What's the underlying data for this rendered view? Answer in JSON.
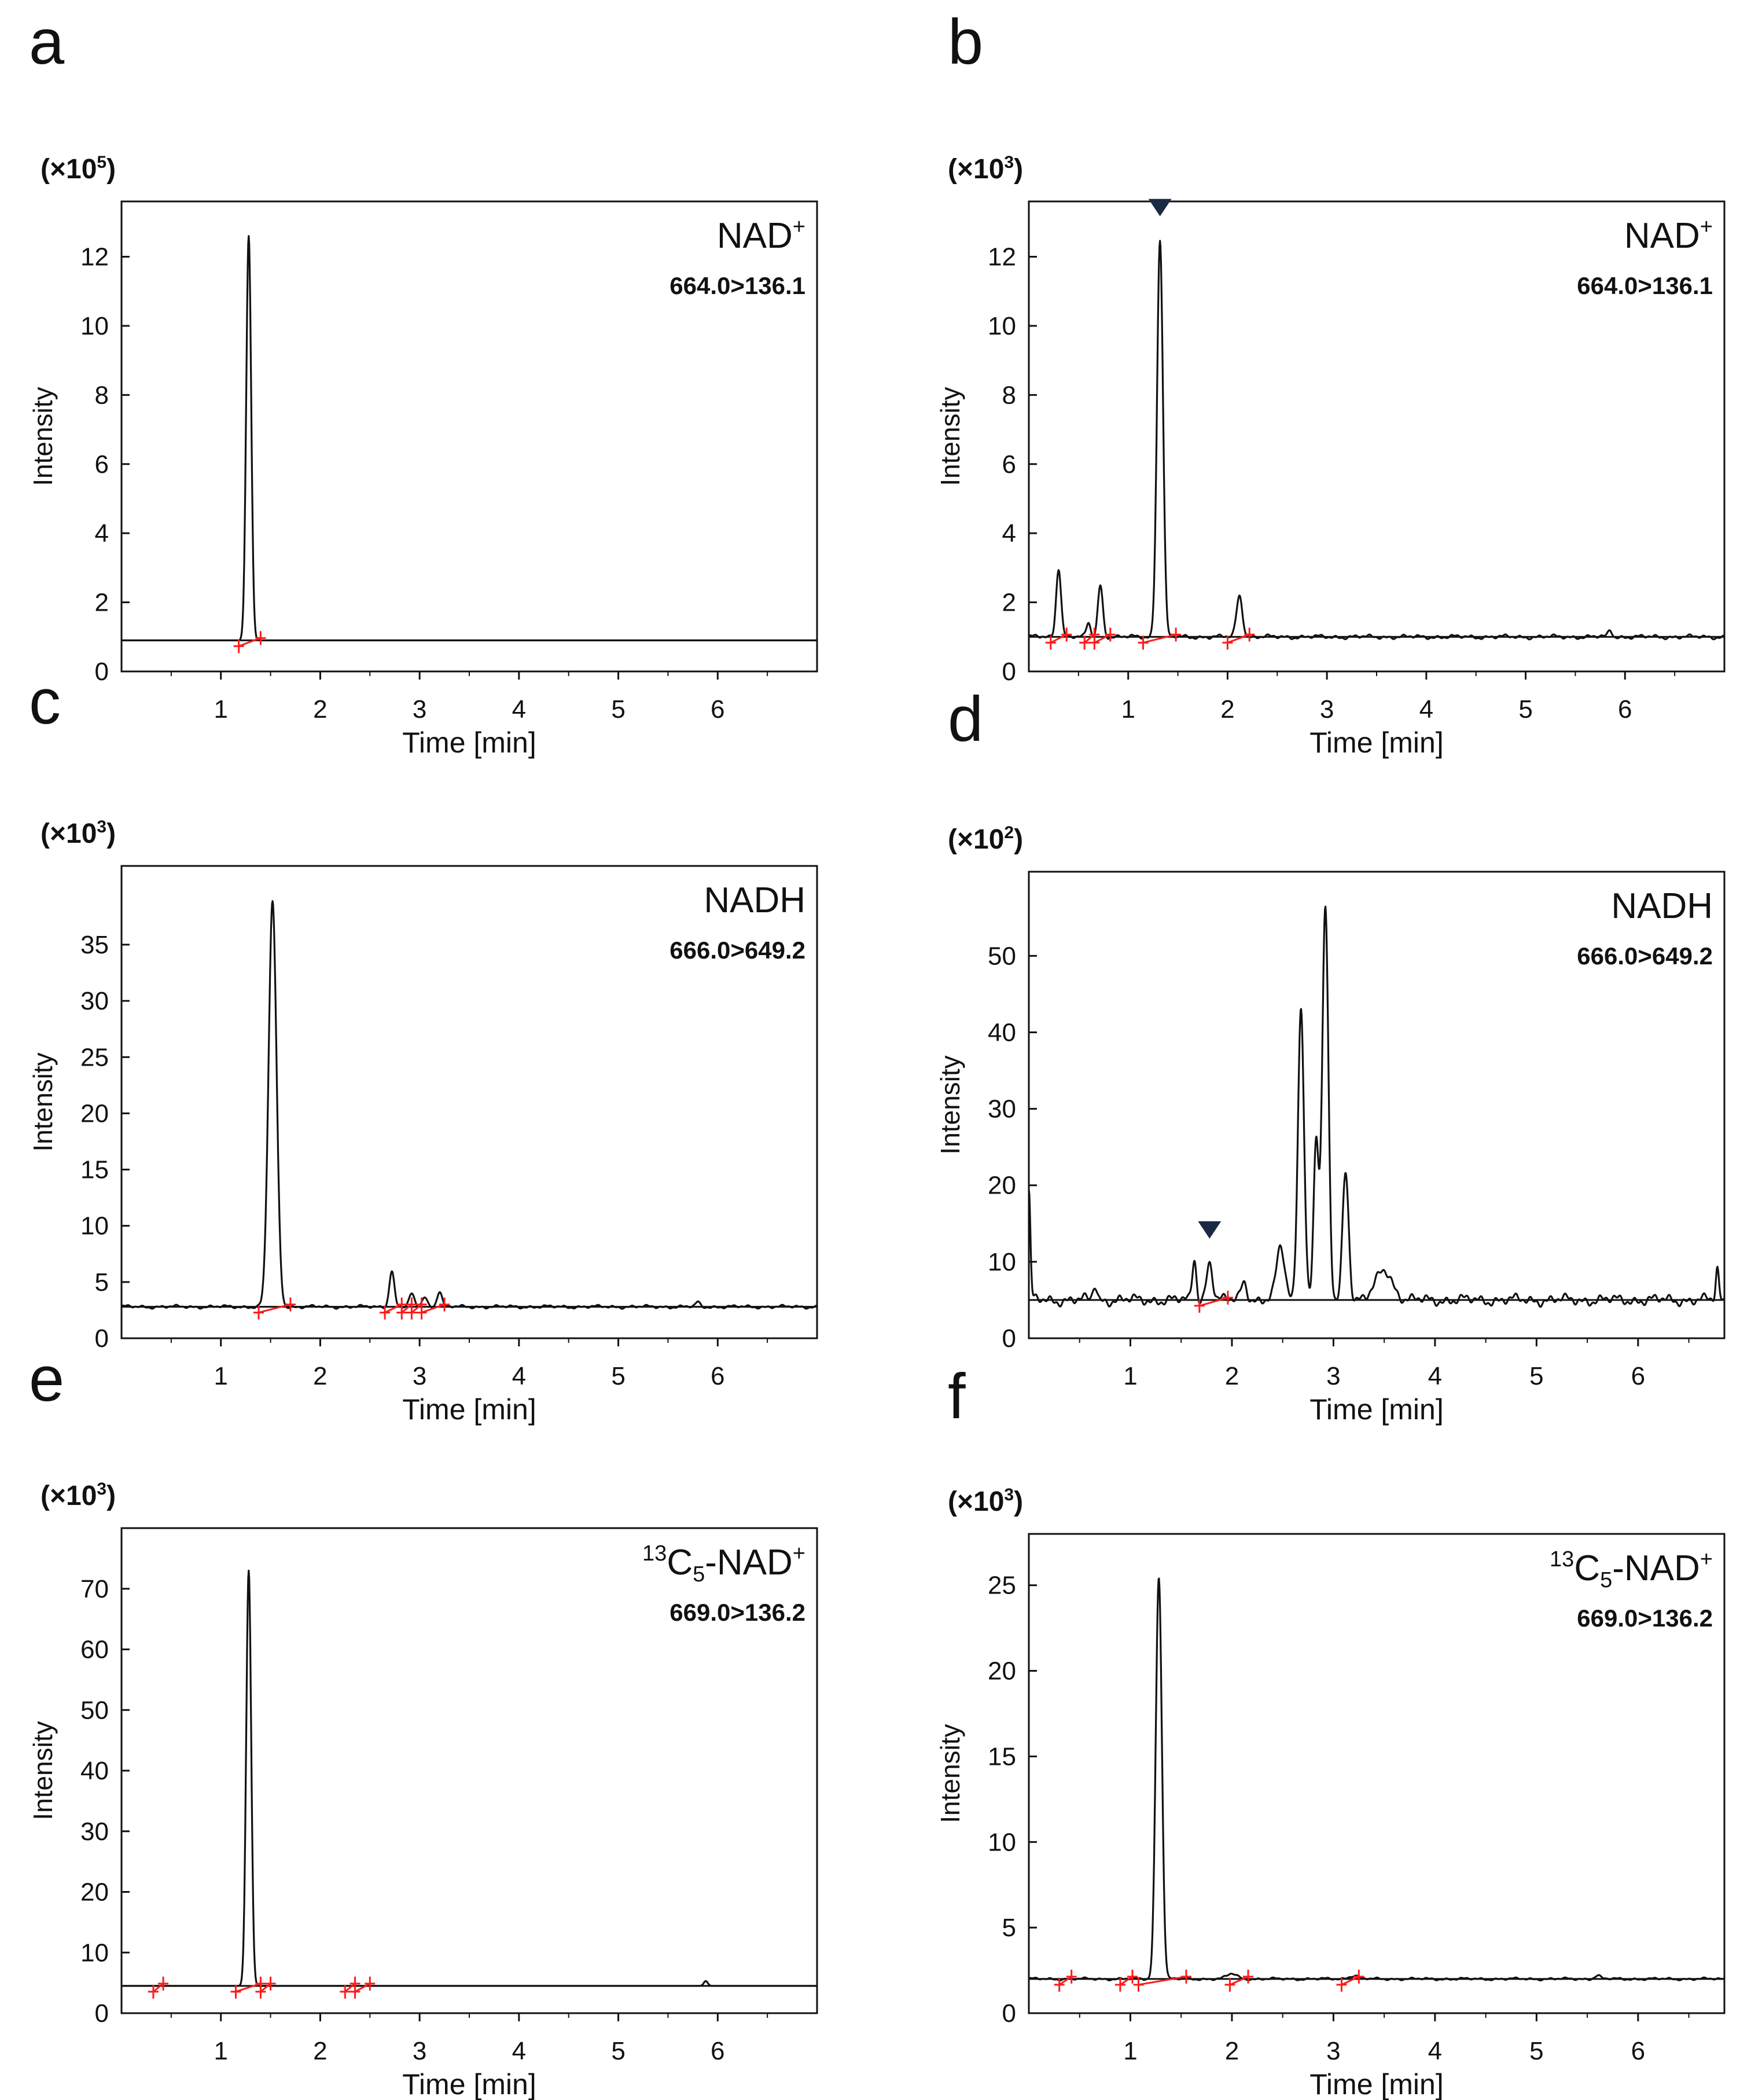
{
  "figure": {
    "panels": [
      "a",
      "b",
      "c",
      "d",
      "e",
      "f"
    ]
  },
  "chart_data": [
    {
      "id": "a",
      "type": "line",
      "multiplier": {
        "base": "(×10",
        "exp": "5",
        "close": ")"
      },
      "analyte": {
        "pre": "",
        "main": "NAD",
        "sup": "+",
        "mid": "",
        "sub": ""
      },
      "transition": "664.0>136.1",
      "xlabel": "Time [min]",
      "ylabel": "Intensity",
      "xlim": [
        0,
        7
      ],
      "ylim": [
        0,
        13.6
      ],
      "xticks": [
        1,
        2,
        3,
        4,
        5,
        6
      ],
      "yticks": [
        0,
        2,
        4,
        6,
        8,
        10,
        12
      ],
      "baseline": 0.9,
      "peaks": [
        {
          "rt": 1.28,
          "h": 12.6,
          "w": 0.025
        }
      ],
      "noise": 0,
      "integration": [
        [
          1.18,
          1.4
        ]
      ],
      "marker": null
    },
    {
      "id": "b",
      "type": "line",
      "multiplier": {
        "base": "(×10",
        "exp": "3",
        "close": ")"
      },
      "analyte": {
        "pre": "",
        "main": "NAD",
        "sup": "+",
        "mid": "",
        "sub": ""
      },
      "transition": "664.0>136.1",
      "xlabel": "Time [min]",
      "ylabel": "Intensity",
      "xlim": [
        0,
        7
      ],
      "ylim": [
        0,
        13.6
      ],
      "xticks": [
        1,
        2,
        3,
        4,
        5,
        6
      ],
      "yticks": [
        0,
        2,
        4,
        6,
        8,
        10,
        12
      ],
      "baseline": 1.0,
      "peaks": [
        {
          "rt": 0.3,
          "h": 3.0,
          "w": 0.025
        },
        {
          "rt": 0.6,
          "h": 1.4,
          "w": 0.02
        },
        {
          "rt": 0.72,
          "h": 2.5,
          "w": 0.025
        },
        {
          "rt": 1.32,
          "h": 12.5,
          "w": 0.03
        },
        {
          "rt": 2.12,
          "h": 2.2,
          "w": 0.03
        },
        {
          "rt": 5.85,
          "h": 1.2,
          "w": 0.02
        }
      ],
      "noise": 0.05,
      "integration": [
        [
          0.22,
          0.38
        ],
        [
          0.56,
          0.66
        ],
        [
          0.66,
          0.82
        ],
        [
          1.15,
          1.48
        ],
        [
          2.0,
          2.22
        ]
      ],
      "marker": 1.32
    },
    {
      "id": "c",
      "type": "line",
      "multiplier": {
        "base": "(×10",
        "exp": "3",
        "close": ")"
      },
      "analyte": {
        "pre": "",
        "main": "NADH",
        "sup": "",
        "mid": "",
        "sub": ""
      },
      "transition": "666.0>649.2",
      "xlabel": "Time [min]",
      "ylabel": "Intensity",
      "xlim": [
        0,
        7
      ],
      "ylim": [
        0,
        42
      ],
      "xticks": [
        1,
        2,
        3,
        4,
        5,
        6
      ],
      "yticks": [
        0,
        5,
        10,
        15,
        20,
        25,
        30,
        35
      ],
      "baseline": 2.8,
      "peaks": [
        {
          "rt": 1.52,
          "h": 38.8,
          "w": 0.04
        },
        {
          "rt": 2.72,
          "h": 6.0,
          "w": 0.025
        },
        {
          "rt": 2.92,
          "h": 3.9,
          "w": 0.025
        },
        {
          "rt": 3.05,
          "h": 3.7,
          "w": 0.025
        },
        {
          "rt": 3.2,
          "h": 4.2,
          "w": 0.025
        },
        {
          "rt": 5.8,
          "h": 3.2,
          "w": 0.02
        }
      ],
      "noise": 0.12,
      "integration": [
        [
          1.38,
          1.7
        ],
        [
          2.65,
          2.82
        ],
        [
          2.82,
          2.92
        ],
        [
          2.92,
          3.02
        ],
        [
          3.02,
          3.25
        ]
      ],
      "marker": null
    },
    {
      "id": "d",
      "type": "line",
      "multiplier": {
        "base": "(×10",
        "exp": "2",
        "close": ")"
      },
      "analyte": {
        "pre": "",
        "main": "NADH",
        "sup": "",
        "mid": "",
        "sub": ""
      },
      "transition": "666.0>649.2",
      "xlabel": "Time [min]",
      "ylabel": "Intensity",
      "xlim": [
        0,
        6.85
      ],
      "ylim": [
        0,
        61
      ],
      "xticks": [
        1,
        2,
        3,
        4,
        5,
        6
      ],
      "yticks": [
        0,
        10,
        20,
        30,
        40,
        50
      ],
      "baseline": 5,
      "peaks": [
        {
          "rt": 0.0,
          "h": 19,
          "w": 0.015
        },
        {
          "rt": 0.65,
          "h": 7,
          "w": 0.02
        },
        {
          "rt": 1.63,
          "h": 10.5,
          "w": 0.02
        },
        {
          "rt": 1.78,
          "h": 10,
          "w": 0.03
        },
        {
          "rt": 2.12,
          "h": 7.5,
          "w": 0.03
        },
        {
          "rt": 2.48,
          "h": 12,
          "w": 0.04
        },
        {
          "rt": 2.68,
          "h": 43.5,
          "w": 0.03
        },
        {
          "rt": 2.83,
          "h": 26,
          "w": 0.025
        },
        {
          "rt": 2.92,
          "h": 56,
          "w": 0.03
        },
        {
          "rt": 3.12,
          "h": 22,
          "w": 0.03
        },
        {
          "rt": 3.5,
          "h": 9,
          "w": 0.08
        },
        {
          "rt": 6.78,
          "h": 9,
          "w": 0.015
        }
      ],
      "noise": 0.6,
      "integration": [
        [
          1.68,
          1.96
        ]
      ],
      "marker": 1.78
    },
    {
      "id": "e",
      "type": "line",
      "multiplier": {
        "base": "(×10",
        "exp": "3",
        "close": ")"
      },
      "analyte": {
        "pre": "13",
        "main": "C",
        "sub": "5",
        "mid": "-NAD",
        "sup": "+"
      },
      "transition": "669.0>136.2",
      "xlabel": "Time [min]",
      "ylabel": "Intensity",
      "xlim": [
        0,
        7
      ],
      "ylim": [
        0,
        80
      ],
      "xticks": [
        1,
        2,
        3,
        4,
        5,
        6
      ],
      "yticks": [
        0,
        10,
        20,
        30,
        40,
        50,
        60,
        70
      ],
      "baseline": 4.5,
      "peaks": [
        {
          "rt": 1.28,
          "h": 73,
          "w": 0.025
        },
        {
          "rt": 5.88,
          "h": 5.3,
          "w": 0.02
        }
      ],
      "noise": 0,
      "integration": [
        [
          0.32,
          0.42
        ],
        [
          1.15,
          1.4
        ],
        [
          1.4,
          1.5
        ],
        [
          2.25,
          2.35
        ],
        [
          2.35,
          2.5
        ]
      ],
      "marker": null
    },
    {
      "id": "f",
      "type": "line",
      "multiplier": {
        "base": "(×10",
        "exp": "3",
        "close": ")"
      },
      "analyte": {
        "pre": "13",
        "main": "C",
        "sub": "5",
        "mid": "-NAD",
        "sup": "+"
      },
      "transition": "669.0>136.2",
      "xlabel": "Time [min]",
      "ylabel": "Intensity",
      "xlim": [
        0,
        6.85
      ],
      "ylim": [
        0,
        28
      ],
      "xticks": [
        1,
        2,
        3,
        4,
        5,
        6
      ],
      "yticks": [
        0,
        5,
        10,
        15,
        20,
        25
      ],
      "baseline": 2,
      "peaks": [
        {
          "rt": 1.28,
          "h": 25.5,
          "w": 0.03
        },
        {
          "rt": 2.0,
          "h": 2.3,
          "w": 0.05
        },
        {
          "rt": 3.2,
          "h": 2.2,
          "w": 0.05
        },
        {
          "rt": 5.6,
          "h": 2.2,
          "w": 0.03
        }
      ],
      "noise": 0.06,
      "integration": [
        [
          0.3,
          0.42
        ],
        [
          0.9,
          1.02
        ],
        [
          1.08,
          1.55
        ],
        [
          1.98,
          2.16
        ],
        [
          3.08,
          3.25
        ]
      ],
      "marker": null
    }
  ]
}
